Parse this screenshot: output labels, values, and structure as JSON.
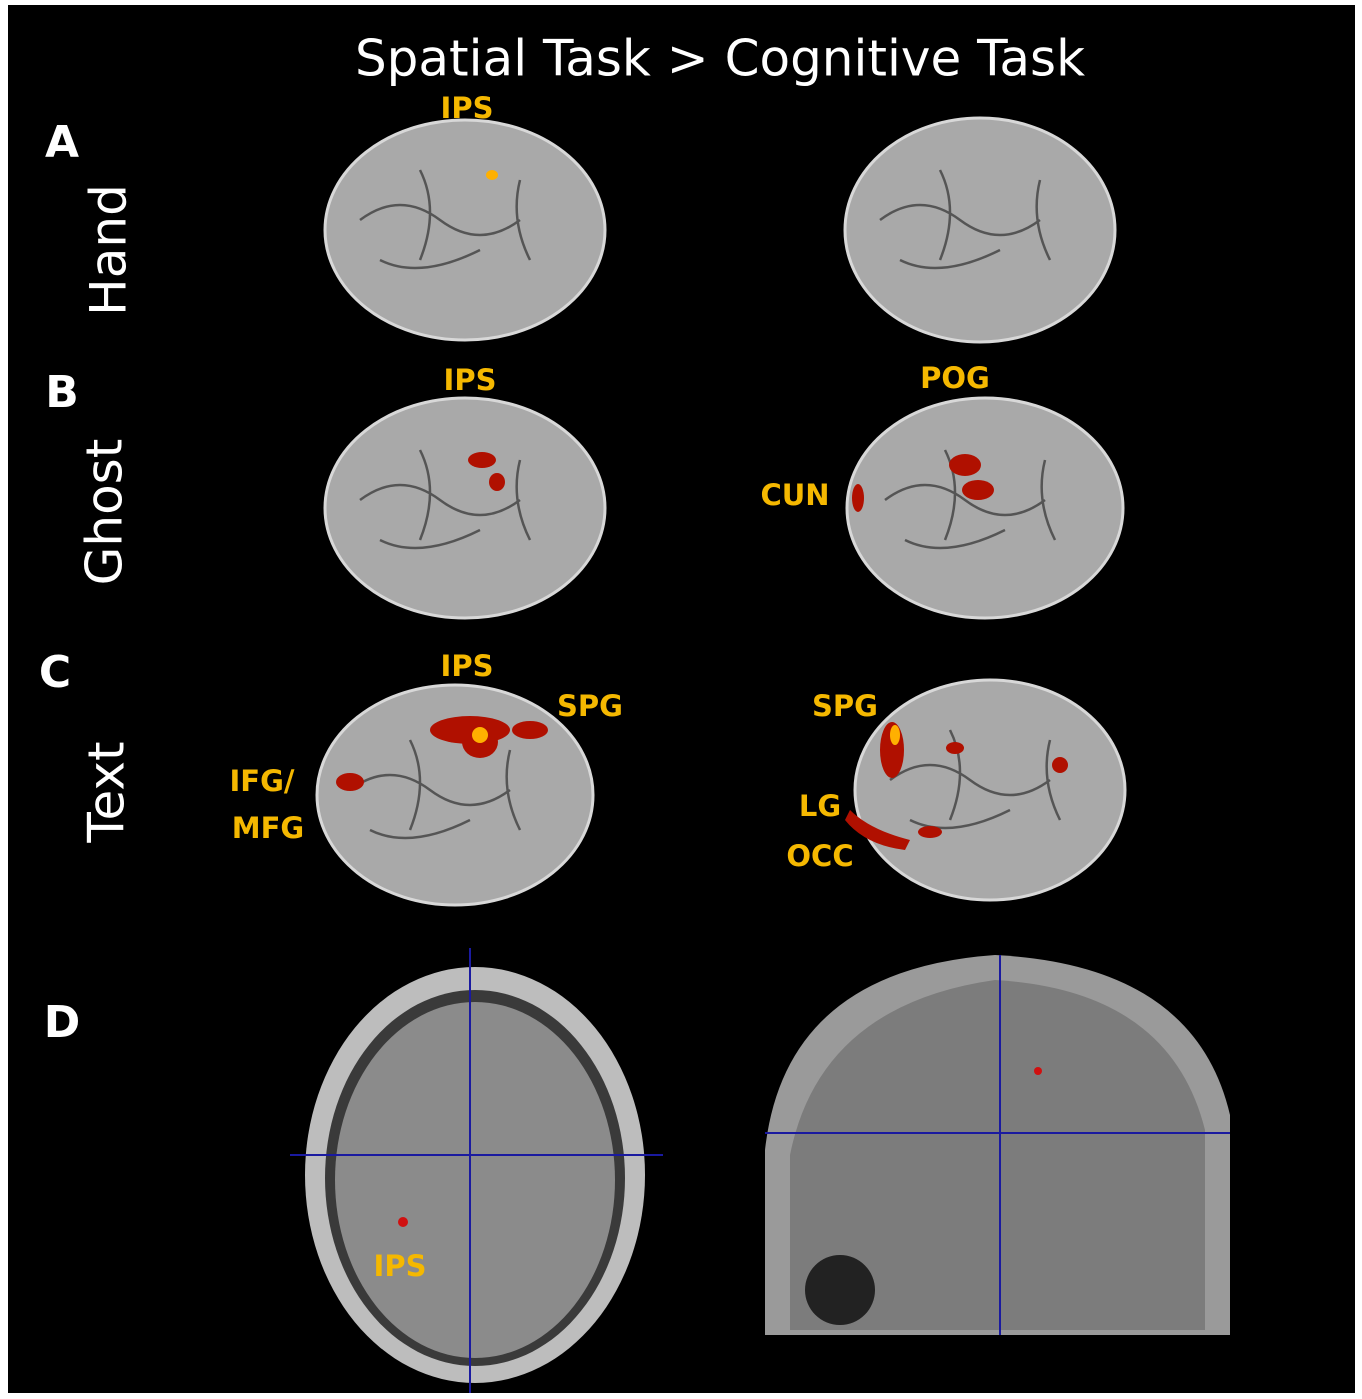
{
  "title": "Spatial Task > Cognitive Task",
  "panels": [
    {
      "letter": "A",
      "condition": "Hand",
      "labels": [
        "IPS"
      ]
    },
    {
      "letter": "B",
      "condition": "Ghost",
      "labels": [
        "IPS",
        "POG",
        "CUN"
      ]
    },
    {
      "letter": "C",
      "condition": "Text",
      "labels": [
        "IPS",
        "SPG",
        "IFG/",
        "MFG",
        "SPG",
        "LG",
        "OCC"
      ]
    },
    {
      "letter": "D",
      "labels": [
        "IPS"
      ]
    }
  ]
}
